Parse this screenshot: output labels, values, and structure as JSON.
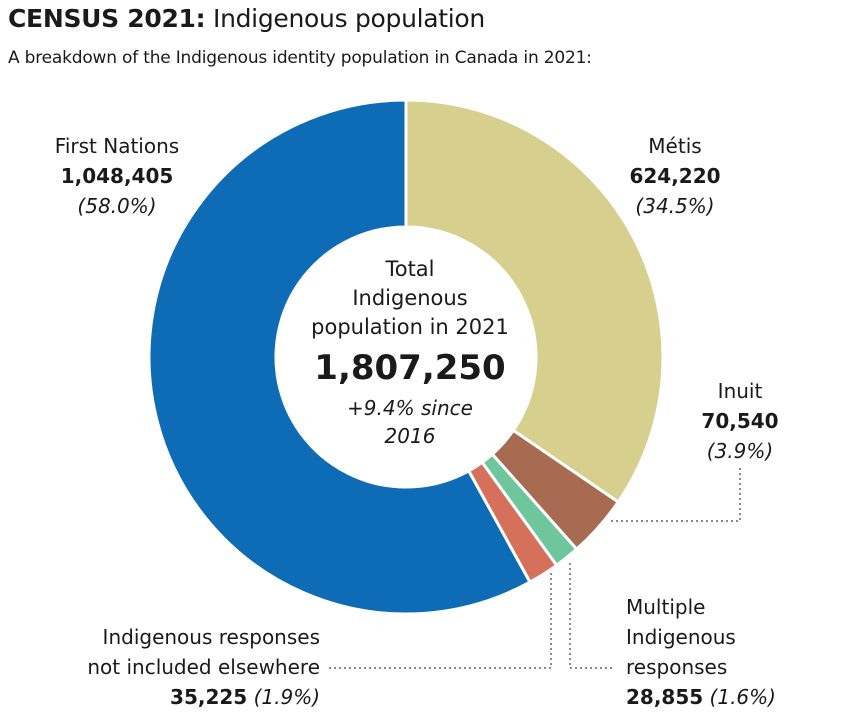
{
  "header": {
    "title_bold": "CENSUS 2021:",
    "title_rest": "Indigenous population",
    "subtitle": "A breakdown of the Indigenous identity population in Canada in 2021:"
  },
  "center": {
    "line1": "Total",
    "line2": "Indigenous",
    "line3": "population in 2021",
    "total": "1,807,250",
    "change_line1": "+9.4% since",
    "change_line2": "2016"
  },
  "chart_data": {
    "type": "pie",
    "title": "CENSUS 2021: Indigenous population",
    "subtitle": "A breakdown of the Indigenous identity population in Canada in 2021:",
    "total": 1807250,
    "total_label": "1,807,250",
    "slices": [
      {
        "name": "Métis",
        "value": 624220,
        "value_label": "624,220",
        "percent_label": "(34.5%)",
        "color": "#d6cf8e"
      },
      {
        "name": "Inuit",
        "value": 70540,
        "value_label": "70,540",
        "percent_label": "(3.9%)",
        "color": "#a66b50"
      },
      {
        "name": "Multiple Indigenous responses",
        "value": 28855,
        "value_label": "28,855",
        "percent_label": "(1.6%)",
        "color": "#6fc59c"
      },
      {
        "name": "Indigenous responses not included elsewhere",
        "value": 35225,
        "value_label": "35,225",
        "percent_label": "(1.9%)",
        "color": "#d5705a"
      },
      {
        "name": "First Nations",
        "value": 1048405,
        "value_label": "1,048,405",
        "percent_label": "(58.0%)",
        "color": "#0d6cb5"
      }
    ]
  },
  "labels": {
    "first_nations": {
      "name": "First Nations",
      "value": "1,048,405",
      "pct": "(58.0%)"
    },
    "metis": {
      "name": "Métis",
      "value": "624,220",
      "pct": "(34.5%)"
    },
    "inuit": {
      "name": "Inuit",
      "value": "70,540",
      "pct": "(3.9%)"
    },
    "multiple": {
      "line1": "Multiple",
      "line2": "Indigenous",
      "line3": "responses",
      "value": "28,855",
      "pct": "(1.6%)"
    },
    "other": {
      "line1": "Indigenous responses",
      "line2": "not included elsewhere",
      "value": "35,225",
      "pct": "(1.9%)"
    }
  }
}
